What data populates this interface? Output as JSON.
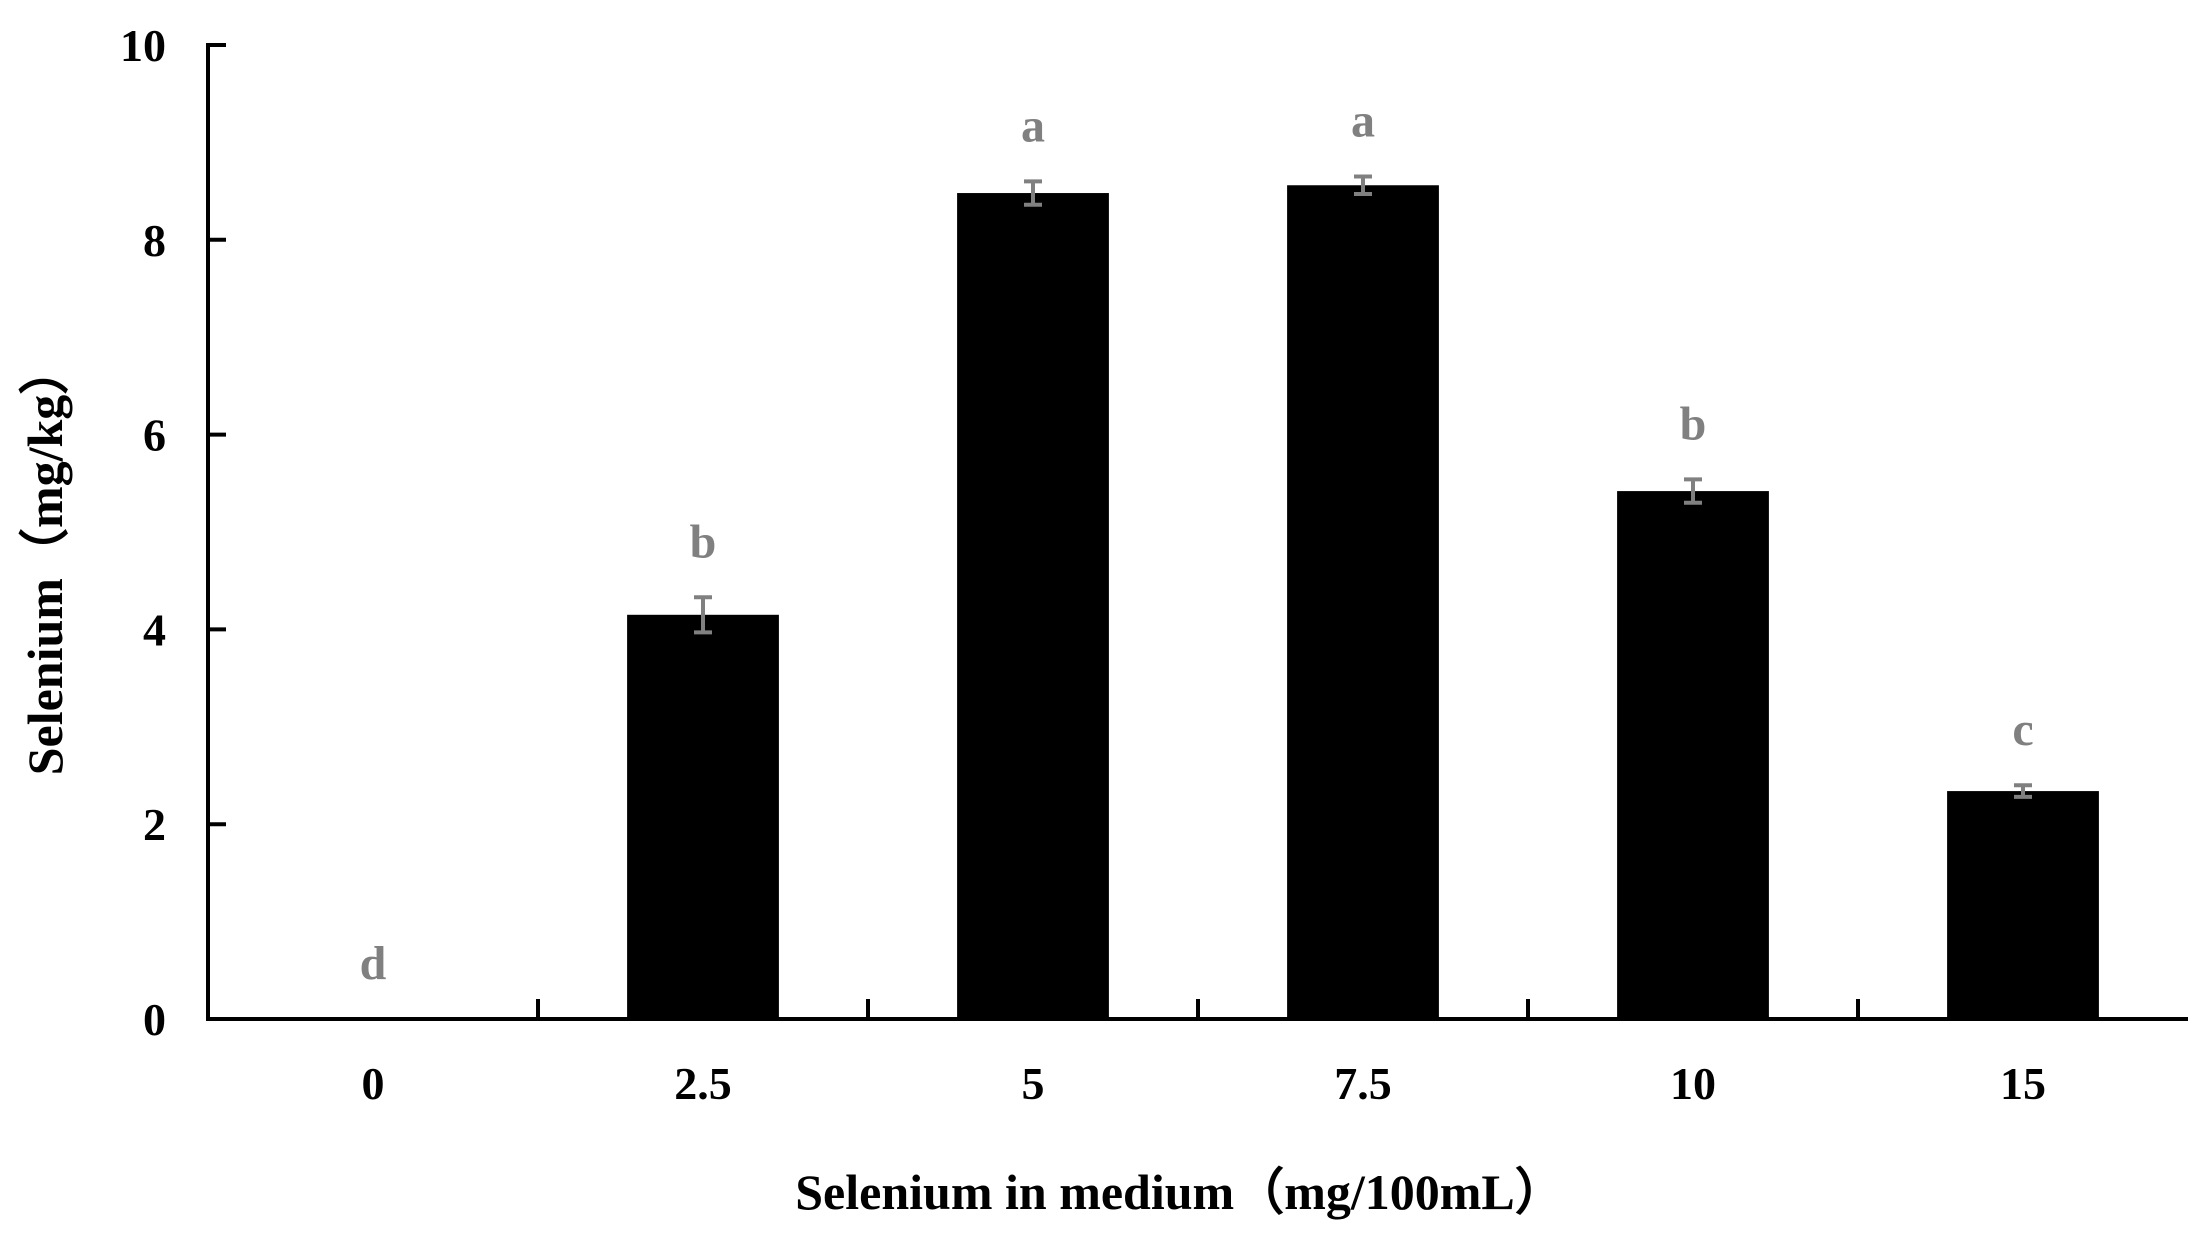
{
  "chart_data": {
    "type": "bar",
    "categories": [
      "0",
      "2.5",
      "5",
      "7.5",
      "10",
      "15"
    ],
    "values": [
      0,
      4.15,
      8.48,
      8.56,
      5.42,
      2.34
    ],
    "errors": [
      0,
      0.18,
      0.12,
      0.09,
      0.12,
      0.06
    ],
    "significance": [
      "d",
      "b",
      "a",
      "a",
      "b",
      "c"
    ],
    "xlabel": "Selenium in medium（mg/100mL）",
    "ylabel": "Selenium（mg/kg）",
    "ylim": [
      0,
      10
    ],
    "yticks": [
      "0",
      "2",
      "4",
      "6",
      "8",
      "10"
    ],
    "grid": false,
    "colors": {
      "bar": "#000000",
      "error_bar": "#808080",
      "significance_label": "#808080",
      "axis": "#000000"
    }
  }
}
